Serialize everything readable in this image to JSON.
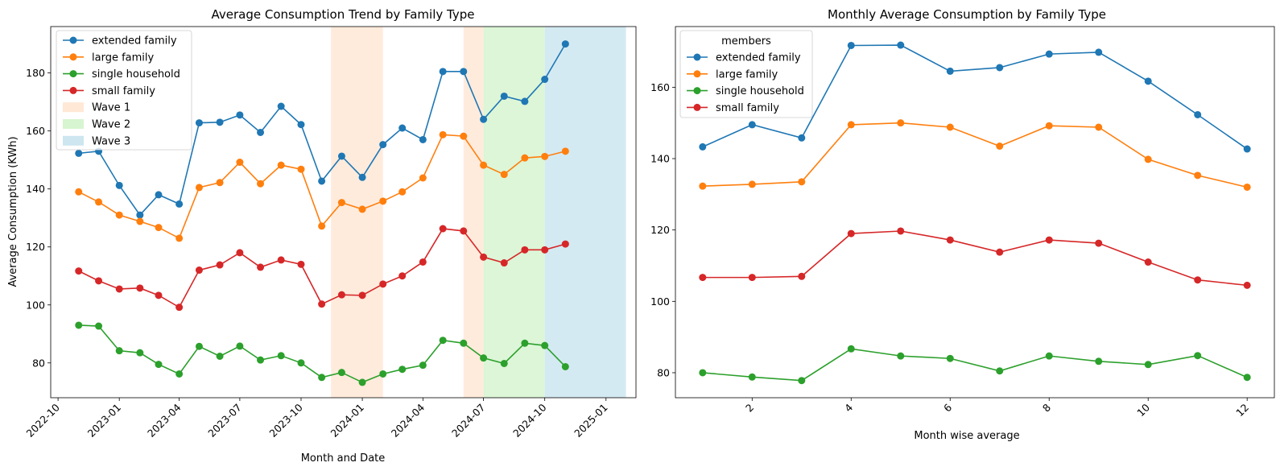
{
  "colors": {
    "extended family": "#1f77b4",
    "large family": "#ff7f0e",
    "single household": "#2ca02c",
    "small family": "#d62728",
    "Wave 1": "#ffe8d6",
    "Wave 2": "#d6f5d0",
    "Wave 3": "#cde6f0"
  },
  "chart_data": [
    {
      "type": "line",
      "title": "Average Consumption Trend by Family Type",
      "xlabel": "Month and Date",
      "ylabel": "Average Consumption (KWh)",
      "x_tick_labels": [
        "2022-10",
        "2023-01",
        "2023-04",
        "2023-07",
        "2023-10",
        "2024-01",
        "2024-04",
        "2024-07",
        "2024-10",
        "2025-01"
      ],
      "y_tick_labels": [
        "80",
        "100",
        "120",
        "140",
        "160",
        "180"
      ],
      "ylim": [
        68,
        196
      ],
      "xlim": [
        "2022-09-20",
        "2025-02-15"
      ],
      "x": [
        "2022-11-01",
        "2022-12-01",
        "2023-01-01",
        "2023-02-01",
        "2023-03-01",
        "2023-04-01",
        "2023-05-01",
        "2023-06-01",
        "2023-07-01",
        "2023-08-01",
        "2023-09-01",
        "2023-10-01",
        "2023-11-01",
        "2023-12-01",
        "2024-01-01",
        "2024-02-01",
        "2024-03-01",
        "2024-04-01",
        "2024-05-01",
        "2024-06-01",
        "2024-07-01",
        "2024-08-01",
        "2024-09-01",
        "2024-10-01",
        "2024-11-01"
      ],
      "series": [
        {
          "name": "extended family",
          "values": [
            152.3,
            153.0,
            141.2,
            131.0,
            138.0,
            134.8,
            162.8,
            163.0,
            165.5,
            159.5,
            168.5,
            162.2,
            142.7,
            151.3,
            144.0,
            155.3,
            161.0,
            157.0,
            180.5,
            180.5,
            164.0,
            172.0,
            170.2,
            177.8,
            190.0
          ]
        },
        {
          "name": "large family",
          "values": [
            139.0,
            135.5,
            131.0,
            128.8,
            126.7,
            123.0,
            140.5,
            142.2,
            149.2,
            141.8,
            148.2,
            146.8,
            127.2,
            135.3,
            133.0,
            135.8,
            139.0,
            143.8,
            158.7,
            158.2,
            148.2,
            145.0,
            150.7,
            151.2,
            153.0
          ]
        },
        {
          "name": "single household",
          "values": [
            93.0,
            92.7,
            84.2,
            83.5,
            79.5,
            76.2,
            85.7,
            82.3,
            85.8,
            81.0,
            82.5,
            80.0,
            75.0,
            76.7,
            73.3,
            76.2,
            77.8,
            79.2,
            87.8,
            86.8,
            81.7,
            79.8,
            86.8,
            86.0,
            78.7
          ]
        },
        {
          "name": "small family",
          "values": [
            111.7,
            108.3,
            105.5,
            105.8,
            103.3,
            99.2,
            112.0,
            113.8,
            118.0,
            113.0,
            115.5,
            114.0,
            100.3,
            103.5,
            103.3,
            107.2,
            110.0,
            114.8,
            126.3,
            125.5,
            116.5,
            114.5,
            119.0,
            119.0,
            121.0
          ]
        }
      ],
      "bands": [
        {
          "name": "Wave 1",
          "ranges": [
            [
              "2023-11-15",
              "2024-02-01"
            ],
            [
              "2024-06-01",
              "2024-07-01"
            ]
          ]
        },
        {
          "name": "Wave 2",
          "ranges": [
            [
              "2024-07-01",
              "2024-10-01"
            ]
          ]
        },
        {
          "name": "Wave 3",
          "ranges": [
            [
              "2024-10-01",
              "2025-01-31"
            ]
          ]
        }
      ],
      "legend_position": "top-left"
    },
    {
      "type": "line",
      "title": "Monthly Average Consumption by Family Type",
      "xlabel": "Month wise average",
      "ylabel": "",
      "legend_title": "members",
      "legend_position": "top-left",
      "x": [
        1,
        2,
        3,
        4,
        5,
        6,
        7,
        8,
        9,
        10,
        11,
        12
      ],
      "x_tick_labels": [
        "2",
        "4",
        "6",
        "8",
        "10",
        "12"
      ],
      "y_tick_labels": [
        "80",
        "100",
        "120",
        "140",
        "160"
      ],
      "xlim": [
        0.45,
        12.55
      ],
      "ylim": [
        73,
        177
      ],
      "series": [
        {
          "name": "extended family",
          "values": [
            143.3,
            149.5,
            145.8,
            171.7,
            171.8,
            164.5,
            165.5,
            169.3,
            169.8,
            161.7,
            152.3,
            142.7
          ]
        },
        {
          "name": "large family",
          "values": [
            132.3,
            132.8,
            133.5,
            149.5,
            150.0,
            148.8,
            143.5,
            149.2,
            148.8,
            139.8,
            135.3,
            132.0
          ]
        },
        {
          "name": "single household",
          "values": [
            80.0,
            78.8,
            77.8,
            86.7,
            84.7,
            84.0,
            80.5,
            84.7,
            83.2,
            82.3,
            84.8,
            78.7
          ]
        },
        {
          "name": "small family",
          "values": [
            106.7,
            106.7,
            107.0,
            119.0,
            119.7,
            117.2,
            113.8,
            117.2,
            116.3,
            111.0,
            106.0,
            104.5
          ]
        }
      ]
    }
  ]
}
